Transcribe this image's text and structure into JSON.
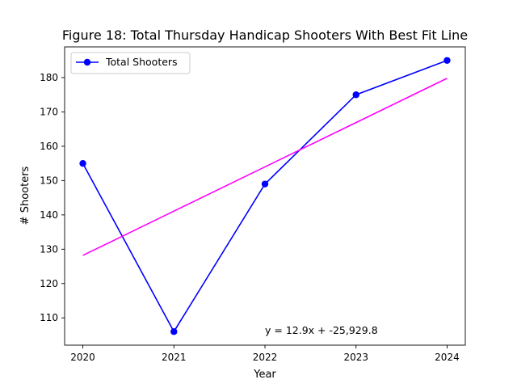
{
  "chart_data": {
    "type": "line",
    "title": "Figure 18: Total Thursday Handicap Shooters With Best Fit Line",
    "xlabel": "Year",
    "ylabel": "# Shooters",
    "x": [
      2020,
      2021,
      2022,
      2023,
      2024
    ],
    "xlim": [
      2019.8,
      2024.2
    ],
    "ylim": [
      102.05,
      188.95
    ],
    "xticks": [
      "2020",
      "2021",
      "2022",
      "2023",
      "2024"
    ],
    "yticks": [
      110,
      120,
      130,
      140,
      150,
      160,
      170,
      180
    ],
    "grid": false,
    "legend": "top-left",
    "series": [
      {
        "name": "Total Shooters",
        "values": [
          155,
          106,
          149,
          175,
          185
        ],
        "color": "#0000ff",
        "marker": "circle"
      },
      {
        "name": "",
        "kind": "best-fit",
        "values": [
          128.2,
          141.1,
          154.0,
          166.9,
          179.8
        ],
        "color": "#ff00ff",
        "marker": "none"
      }
    ],
    "annotations": [
      {
        "text": "y = 12.9x + -25,929.8",
        "x": 2022,
        "y": 106.5
      }
    ]
  }
}
